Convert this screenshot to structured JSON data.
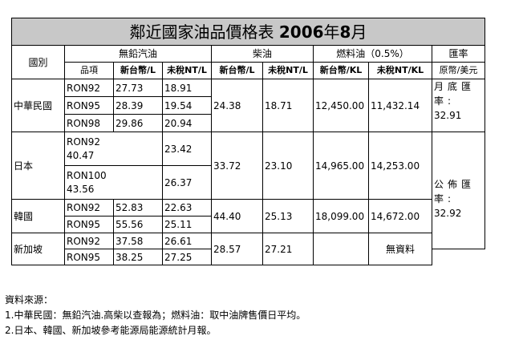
{
  "title": {
    "prefix": "鄰近國家油品價格表 ",
    "year": "2006",
    "mid": "年",
    "month": "8",
    "suffix": "月"
  },
  "headers": {
    "country": "國別",
    "unleaded": "無鉛汽油",
    "diesel": "柴油",
    "fuel_oil": "燃料油（0.5%）",
    "exchange": "匯率",
    "item": "品項",
    "ntd_l": "新台幣/L",
    "notax_l": "未稅NT/L",
    "ntd_l2": "新台幣/L",
    "notax_l2": "未稅NT/L",
    "ntd_kl": "新台幣/KL",
    "notax_kl": "未稅NT/KL",
    "rate_unit": "原幣/美元"
  },
  "taiwan": {
    "name": "中華民國",
    "rows": [
      {
        "item": "RON92",
        "ntd": "27.73",
        "notax": "18.91"
      },
      {
        "item": "RON95",
        "ntd": "28.39",
        "notax": "19.54"
      },
      {
        "item": "RON98",
        "ntd": "29.86",
        "notax": "20.94"
      }
    ],
    "diesel_ntd": "24.38",
    "diesel_notax": "18.71",
    "fuel_ntd": "12,450.00",
    "fuel_notax": "11,432.14"
  },
  "japan": {
    "name": "日本",
    "rows": [
      {
        "item": "RON92",
        "ntd": "40.47",
        "notax": "23.42"
      },
      {
        "item": "RON100",
        "ntd": "43.56",
        "notax": "26.37"
      }
    ],
    "diesel_ntd": "33.72",
    "diesel_notax": "23.10",
    "fuel_ntd": "14,965.00",
    "fuel_notax": "14,253.00"
  },
  "korea": {
    "name": "韓國",
    "rows": [
      {
        "item": "RON92",
        "ntd": "52.83",
        "notax": "22.63"
      },
      {
        "item": "RON95",
        "ntd": "55.56",
        "notax": "25.11"
      }
    ],
    "diesel_ntd": "44.40",
    "diesel_notax": "25.13",
    "fuel_ntd": "18,099.00",
    "fuel_notax": "14,672.00"
  },
  "singapore": {
    "name": "新加坡",
    "rows": [
      {
        "item": "RON92",
        "ntd": "37.58",
        "notax": "26.61"
      },
      {
        "item": "RON95",
        "ntd": "38.25",
        "notax": "27.25"
      }
    ],
    "diesel_ntd": "28.57",
    "diesel_notax": "27.21",
    "fuel_ntd": "",
    "fuel_notax": "無資料"
  },
  "rates": {
    "month_end_label": "月底匯率:",
    "month_end_value": "32.91",
    "announced_label": "公佈匯率:",
    "announced_value": "32.92"
  },
  "notes": {
    "heading": "資料來源：",
    "line1": "1.中華民國：無鉛汽油.高柴以查報為；燃料油：取中油牌售價日平均。",
    "line2": "2.日本、韓國、新加坡參考能源局能源統計月報。"
  }
}
